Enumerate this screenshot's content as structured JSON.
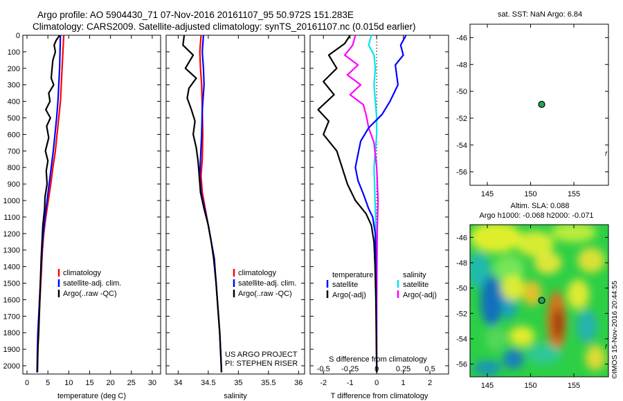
{
  "header": {
    "line1": "Argo profile: AO 5904430_71 07-Nov-2016 20161107_95 50.972S 151.283E",
    "line2": "Climatology: CARS2009. Satellite-adjusted climatology: synTS_20161107.nc (0.015d earlier)"
  },
  "colors": {
    "climatology": "#ff0000",
    "satellite": "#0000ff",
    "argo": "#000000",
    "salinity_sat": "#00e5ee",
    "salinity_argo": "#ff00ff"
  },
  "chart_data": [
    {
      "id": "temperature",
      "type": "line",
      "xlabel": "temperature (deg C)",
      "ylabel": "",
      "xlim": [
        -1,
        32
      ],
      "ylim": [
        2050,
        0
      ],
      "xticks": [
        "0",
        "5",
        "10",
        "15",
        "20",
        "25",
        "30"
      ],
      "yticks": [
        "0",
        "100",
        "200",
        "300",
        "400",
        "500",
        "600",
        "700",
        "800",
        "900",
        "1000",
        "1100",
        "1200",
        "1300",
        "1400",
        "1500",
        "1600",
        "1700",
        "1800",
        "1900",
        "2000"
      ],
      "legend": [
        "climatology",
        "satellite-adj. clim.",
        "Argo(..raw -QC)"
      ],
      "series": [
        {
          "name": "climatology",
          "points": [
            [
              8.8,
              0
            ],
            [
              8.6,
              100
            ],
            [
              8.4,
              200
            ],
            [
              8.2,
              300
            ],
            [
              8.0,
              400
            ],
            [
              7.6,
              500
            ],
            [
              7.2,
              600
            ],
            [
              6.8,
              700
            ],
            [
              6.2,
              800
            ],
            [
              5.7,
              900
            ],
            [
              5.1,
              1000
            ],
            [
              4.5,
              1100
            ],
            [
              4.0,
              1200
            ],
            [
              3.7,
              1300
            ],
            [
              3.5,
              1400
            ],
            [
              3.3,
              1500
            ],
            [
              3.1,
              1600
            ],
            [
              2.9,
              1700
            ],
            [
              2.7,
              1800
            ],
            [
              2.6,
              1900
            ],
            [
              2.5,
              2000
            ]
          ]
        },
        {
          "name": "satellite-adj. clim.",
          "points": [
            [
              8.0,
              0
            ],
            [
              7.9,
              100
            ],
            [
              7.8,
              200
            ],
            [
              7.6,
              300
            ],
            [
              7.4,
              400
            ],
            [
              7.1,
              500
            ],
            [
              6.7,
              600
            ],
            [
              6.3,
              700
            ],
            [
              5.8,
              800
            ],
            [
              5.3,
              900
            ],
            [
              4.8,
              1000
            ],
            [
              4.3,
              1100
            ],
            [
              3.9,
              1200
            ],
            [
              3.6,
              1300
            ],
            [
              3.4,
              1400
            ],
            [
              3.2,
              1500
            ],
            [
              3.0,
              1600
            ],
            [
              2.8,
              1700
            ],
            [
              2.6,
              1800
            ],
            [
              2.5,
              1900
            ],
            [
              2.4,
              2040
            ]
          ]
        },
        {
          "name": "Argo(..raw -QC)",
          "points": [
            [
              7.8,
              0
            ],
            [
              7.0,
              30
            ],
            [
              6.5,
              60
            ],
            [
              6.8,
              100
            ],
            [
              6.2,
              150
            ],
            [
              6.0,
              200
            ],
            [
              5.8,
              260
            ],
            [
              6.4,
              300
            ],
            [
              5.2,
              350
            ],
            [
              5.5,
              400
            ],
            [
              4.5,
              450
            ],
            [
              5.6,
              500
            ],
            [
              4.7,
              550
            ],
            [
              5.2,
              620
            ],
            [
              4.4,
              700
            ],
            [
              5.0,
              760
            ],
            [
              4.6,
              820
            ],
            [
              4.8,
              900
            ],
            [
              4.3,
              980
            ],
            [
              4.2,
              1050
            ],
            [
              3.8,
              1150
            ],
            [
              3.6,
              1250
            ],
            [
              3.4,
              1350
            ],
            [
              3.2,
              1500
            ],
            [
              3.0,
              1650
            ],
            [
              2.8,
              1800
            ],
            [
              2.6,
              1900
            ],
            [
              2.5,
              2040
            ]
          ]
        }
      ]
    },
    {
      "id": "salinity",
      "type": "line",
      "xlabel": "salinity",
      "ylabel": "",
      "xlim": [
        33.8,
        36.1
      ],
      "ylim": [
        2050,
        0
      ],
      "xticks": [
        "34",
        "34.5",
        "35",
        "35.5",
        "36"
      ],
      "legend": [
        "climatology",
        "satellite-adj. clim.",
        "Argo(..raw -QC)"
      ],
      "annotations": [
        "US ARGO PROJECT",
        "PI: STEPHEN RISER"
      ],
      "series": [
        {
          "name": "climatology",
          "points": [
            [
              34.38,
              0
            ],
            [
              34.36,
              100
            ],
            [
              34.37,
              200
            ],
            [
              34.39,
              300
            ],
            [
              34.4,
              450
            ],
            [
              34.41,
              600
            ],
            [
              34.4,
              750
            ],
            [
              34.38,
              850
            ],
            [
              34.4,
              950
            ],
            [
              34.45,
              1050
            ],
            [
              34.5,
              1150
            ],
            [
              34.55,
              1250
            ],
            [
              34.59,
              1350
            ],
            [
              34.63,
              1500
            ],
            [
              34.66,
              1650
            ],
            [
              34.69,
              1800
            ],
            [
              34.71,
              1950
            ],
            [
              34.72,
              2040
            ]
          ]
        },
        {
          "name": "satellite-adj. clim.",
          "points": [
            [
              34.42,
              0
            ],
            [
              34.4,
              100
            ],
            [
              34.42,
              200
            ],
            [
              34.43,
              300
            ],
            [
              34.4,
              450
            ],
            [
              34.39,
              600
            ],
            [
              34.37,
              750
            ],
            [
              34.36,
              850
            ],
            [
              34.38,
              950
            ],
            [
              34.44,
              1050
            ],
            [
              34.5,
              1150
            ],
            [
              34.55,
              1250
            ],
            [
              34.6,
              1350
            ],
            [
              34.63,
              1500
            ],
            [
              34.66,
              1650
            ],
            [
              34.69,
              1800
            ],
            [
              34.71,
              1950
            ],
            [
              34.72,
              2040
            ]
          ]
        },
        {
          "name": "Argo(..raw -QC)",
          "points": [
            [
              34.1,
              0
            ],
            [
              34.08,
              60
            ],
            [
              34.25,
              120
            ],
            [
              34.12,
              200
            ],
            [
              34.3,
              260
            ],
            [
              34.18,
              320
            ],
            [
              34.15,
              380
            ],
            [
              34.22,
              450
            ],
            [
              34.28,
              520
            ],
            [
              34.25,
              600
            ],
            [
              34.3,
              680
            ],
            [
              34.33,
              760
            ],
            [
              34.35,
              850
            ],
            [
              34.37,
              950
            ],
            [
              34.43,
              1050
            ],
            [
              34.5,
              1150
            ],
            [
              34.55,
              1250
            ],
            [
              34.59,
              1350
            ],
            [
              34.63,
              1500
            ],
            [
              34.66,
              1650
            ],
            [
              34.69,
              1800
            ],
            [
              34.71,
              1950
            ],
            [
              34.72,
              2040
            ]
          ]
        }
      ]
    },
    {
      "id": "difference",
      "type": "line",
      "xlabel": "T difference from climatology",
      "top_xlabel": "S difference from climatology",
      "xlim": [
        -2.5,
        2.7
      ],
      "ylim": [
        2050,
        0
      ],
      "xticks": [
        "-2",
        "-1",
        "0",
        "1",
        "2"
      ],
      "top_xticks": [
        "-0.5",
        "-0.25",
        "0",
        "0.25",
        "0.5"
      ],
      "legend_temperature": [
        "temperature",
        "satellite",
        "Argo(-adj)"
      ],
      "legend_salinity": [
        "salinity",
        "satellite",
        "Argo(-adj)"
      ],
      "series": [
        {
          "name": "temperature satellite",
          "points": [
            [
              1.1,
              0
            ],
            [
              0.9,
              60
            ],
            [
              1.0,
              120
            ],
            [
              0.7,
              180
            ],
            [
              0.8,
              300
            ],
            [
              0.5,
              400
            ],
            [
              0.2,
              480
            ],
            [
              -0.3,
              560
            ],
            [
              -0.6,
              640
            ],
            [
              -0.7,
              720
            ],
            [
              -0.8,
              800
            ],
            [
              -0.7,
              880
            ],
            [
              -0.5,
              960
            ],
            [
              -0.3,
              1050
            ],
            [
              -0.15,
              1100
            ],
            [
              -0.05,
              1200
            ],
            [
              -0.03,
              1400
            ],
            [
              -0.02,
              1600
            ],
            [
              0,
              2040
            ]
          ]
        },
        {
          "name": "temperature Argo(-adj)",
          "points": [
            [
              -1.0,
              0
            ],
            [
              -1.2,
              50
            ],
            [
              -1.8,
              120
            ],
            [
              -1.5,
              200
            ],
            [
              -2.0,
              280
            ],
            [
              -1.6,
              360
            ],
            [
              -2.2,
              450
            ],
            [
              -1.8,
              520
            ],
            [
              -2.0,
              600
            ],
            [
              -1.5,
              700
            ],
            [
              -1.3,
              800
            ],
            [
              -1.1,
              900
            ],
            [
              -0.8,
              1000
            ],
            [
              -0.4,
              1080
            ],
            [
              -0.2,
              1150
            ],
            [
              -0.1,
              1250
            ],
            [
              -0.06,
              1400
            ],
            [
              -0.03,
              1600
            ],
            [
              0,
              2040
            ]
          ]
        },
        {
          "name": "salinity satellite",
          "points": [
            [
              -0.2,
              0
            ],
            [
              -0.3,
              60
            ],
            [
              -0.1,
              120
            ],
            [
              -0.05,
              200
            ],
            [
              -0.1,
              300
            ],
            [
              -0.05,
              400
            ],
            [
              0,
              500
            ],
            [
              0,
              600
            ],
            [
              -0.05,
              700
            ],
            [
              -0.1,
              800
            ],
            [
              -0.08,
              900
            ],
            [
              -0.06,
              1000
            ],
            [
              -0.04,
              1100
            ],
            [
              -0.03,
              1300
            ],
            [
              -0.02,
              1600
            ],
            [
              0,
              2040
            ]
          ]
        },
        {
          "name": "salinity Argo(-adj)",
          "points": [
            [
              -0.8,
              0
            ],
            [
              -0.9,
              60
            ],
            [
              -1.2,
              120
            ],
            [
              -0.7,
              180
            ],
            [
              -1.1,
              240
            ],
            [
              -0.6,
              300
            ],
            [
              -1.0,
              360
            ],
            [
              -0.5,
              420
            ],
            [
              -0.4,
              480
            ],
            [
              -0.3,
              560
            ],
            [
              -0.1,
              650
            ],
            [
              0,
              800
            ],
            [
              0.05,
              1000
            ],
            [
              0.02,
              1200
            ],
            [
              0,
              1600
            ],
            [
              0,
              2040
            ]
          ]
        }
      ]
    },
    {
      "id": "position_sst",
      "type": "scatter",
      "title": "sat. SST: NaN Argo: 6.84",
      "xlim": [
        143,
        159
      ],
      "ylim": [
        -57,
        -45
      ],
      "xticks": [
        "145",
        "150",
        "155"
      ],
      "yticks": [
        "-46",
        "-48",
        "-50",
        "-52",
        "-54",
        "-56"
      ],
      "points": [
        {
          "lon": 151.283,
          "lat": -50.972
        }
      ],
      "north_arrow": "f"
    },
    {
      "id": "position_sla",
      "type": "heatmap",
      "title": "Altim. SLA: 0.088",
      "subtitle": "Argo h1000: -0.068 h2000: -0.071",
      "xlim": [
        143,
        159
      ],
      "ylim": [
        -57,
        -45
      ],
      "xticks": [
        "145",
        "150",
        "155"
      ],
      "yticks": [
        "-46",
        "-48",
        "-50",
        "-52",
        "-54",
        "-56"
      ],
      "points": [
        {
          "lon": 151.283,
          "lat": -50.972
        }
      ],
      "north_arrow": "f",
      "side_label": "©IMOS 15-Nov-2016 20:44:55"
    }
  ]
}
